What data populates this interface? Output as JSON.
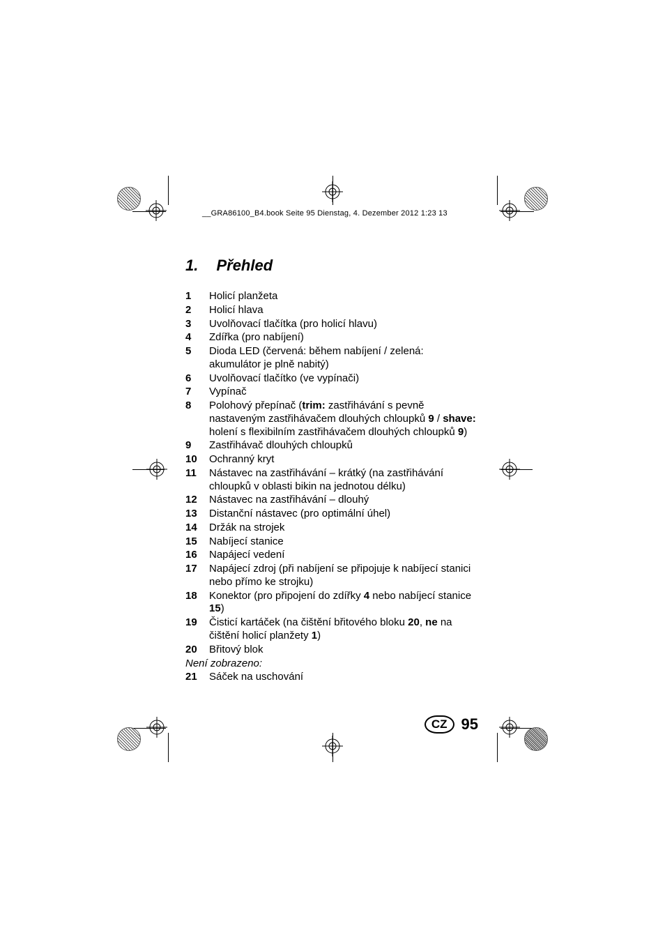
{
  "header_note": "__GRA86100_B4.book  Seite 95  Dienstag, 4. Dezember 2012  1:23 13",
  "section": {
    "number": "1.",
    "title": "Přehled",
    "title_fontsize": 22
  },
  "items": [
    {
      "n": "1",
      "html": "Holicí planžeta"
    },
    {
      "n": "2",
      "html": "Holicí hlava"
    },
    {
      "n": "3",
      "html": "Uvolňovací tlačítka (pro holicí hlavu)"
    },
    {
      "n": "4",
      "html": "Zdířka (pro nabíjení)"
    },
    {
      "n": "5",
      "html": "Dioda LED (červená: během nabíjení / zelená: akumulátor je plně nabitý)"
    },
    {
      "n": "6",
      "html": "Uvolňovací tlačítko (ve vypínači)"
    },
    {
      "n": "7",
      "html": "Vypínač"
    },
    {
      "n": "8",
      "html": "Polohový přepínač (<b>trim:</b> zastřihávání s pevně nastaveným zastřihávačem dlouhých chloupků <b>9</b> / <b>shave:</b> holení s flexibilním zastřihávačem dlouhých chloupků <b>9</b>)"
    },
    {
      "n": "9",
      "html": "Zastřihávač dlouhých chloupků"
    },
    {
      "n": "10",
      "html": "Ochranný kryt"
    },
    {
      "n": "11",
      "html": "Nástavec na zastřihávání – krátký (na zastřihávání chloupků v oblasti bikin na jednotou délku)"
    },
    {
      "n": "12",
      "html": "Nástavec na zastřihávání – dlouhý"
    },
    {
      "n": "13",
      "html": "Distanční nástavec (pro optimální úhel)"
    },
    {
      "n": "14",
      "html": "Držák na strojek"
    },
    {
      "n": "15",
      "html": "Nabíjecí stanice"
    },
    {
      "n": "16",
      "html": "Napájecí vedení"
    },
    {
      "n": "17",
      "html": "Napájecí zdroj (při nabíjení se připojuje k nabíjecí stanici nebo přímo ke strojku)"
    },
    {
      "n": "18",
      "html": "Konektor (pro připojení do zdířky <b>4</b> nebo nabíjecí stanice <b>15</b>)"
    },
    {
      "n": "19",
      "html": "Čisticí kartáček (na čištění břitového bloku <b>20</b>, <b>ne</b> na čištění holicí planžety <b>1</b>)"
    },
    {
      "n": "20",
      "html": "Břitový blok"
    }
  ],
  "note": "Není zobrazeno:",
  "items_after": [
    {
      "n": "21",
      "html": "Sáček na uschování"
    }
  ],
  "footer": {
    "badge": "CZ",
    "page": "95"
  },
  "colors": {
    "text": "#000000",
    "bg": "#ffffff"
  }
}
